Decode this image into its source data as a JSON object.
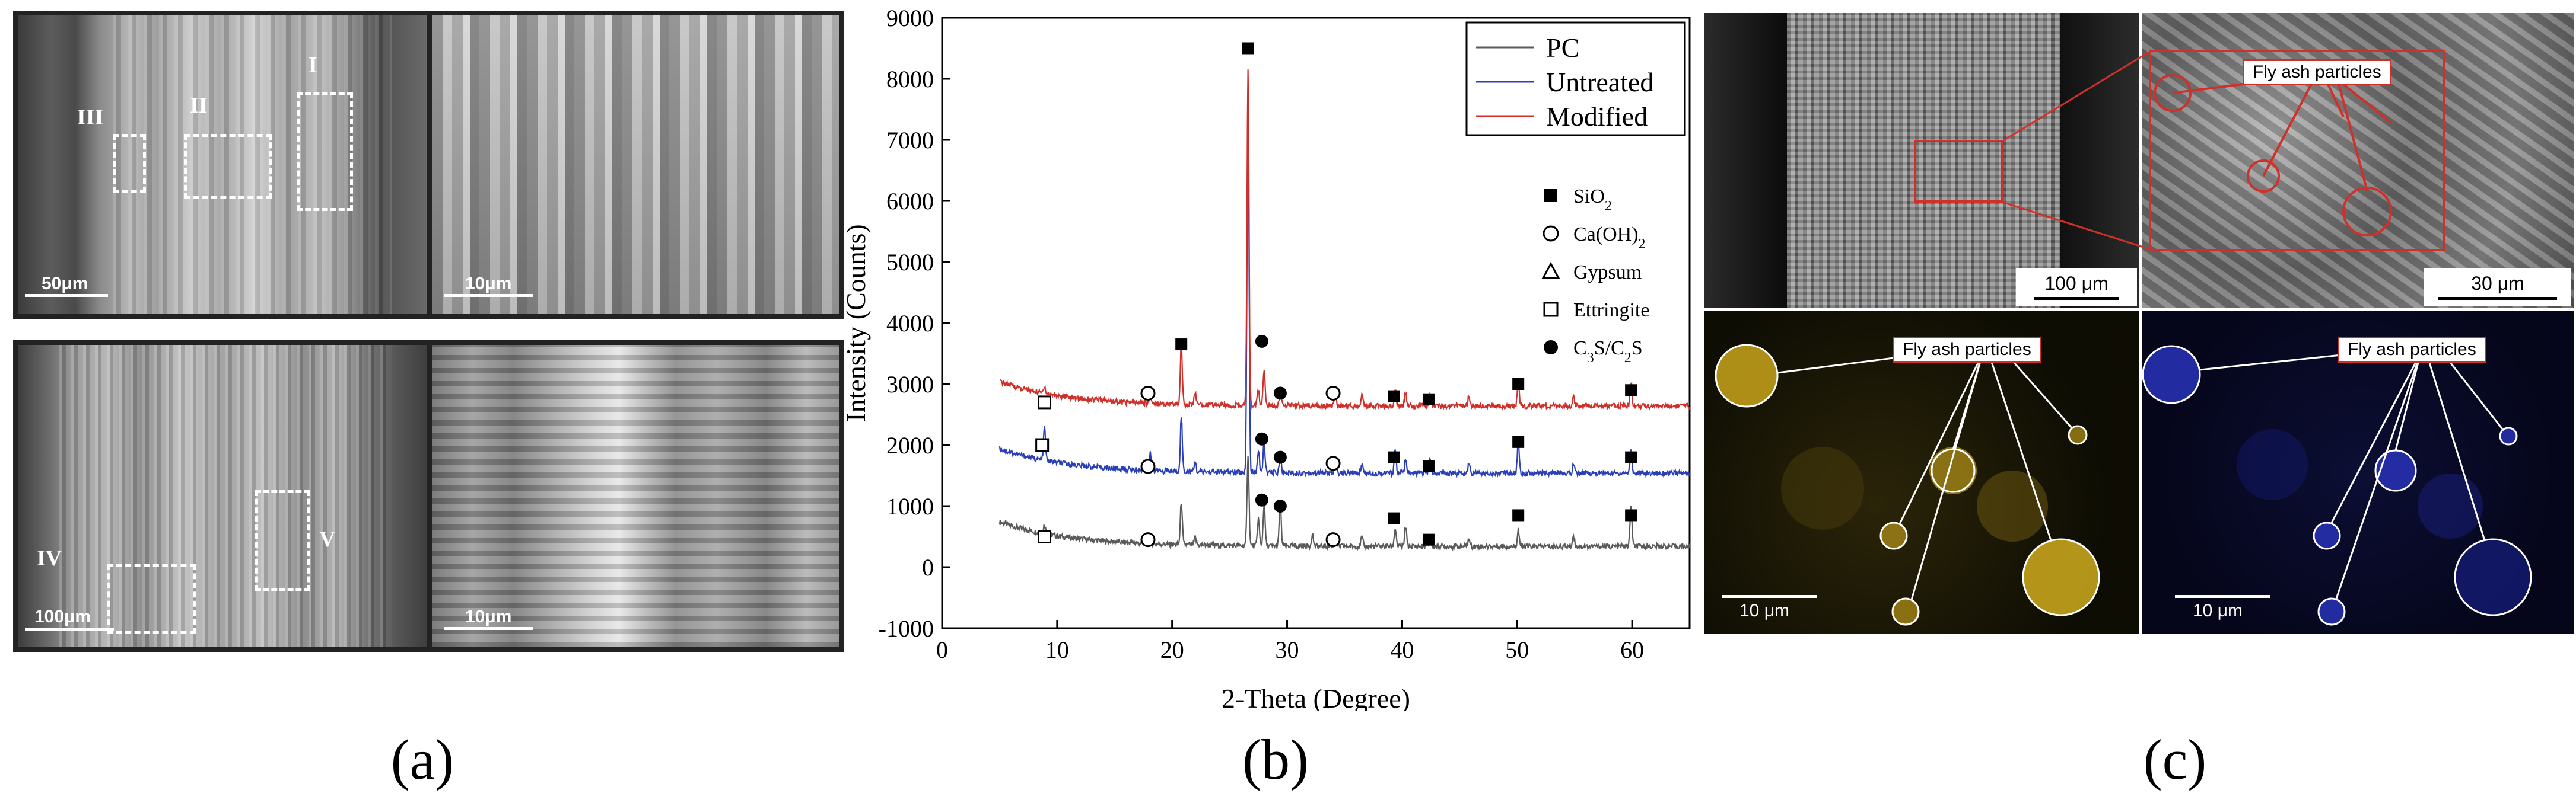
{
  "panels": {
    "a": "(a)",
    "b": "(b)",
    "c": "(c)"
  },
  "panel_a": {
    "top_left_scale": "50μm",
    "top_right_scale": "10μm",
    "bottom_left_scale": "100μm",
    "bottom_right_scale": "10μm",
    "region_labels": [
      "I",
      "II",
      "III",
      "IV",
      "V"
    ]
  },
  "panel_c": {
    "scale_top_left": "100 μm",
    "scale_top_right": "30 μm",
    "scale_bottom_left": "10 μm",
    "scale_bottom_right": "10 μm",
    "callout_top": "Fly ash particles",
    "callout_bottom_left": "Fly ash particles",
    "callout_bottom_right": "Fly ash particles"
  },
  "colors": {
    "pc": "#5a5a5a",
    "untreated": "#2b3fb8",
    "modified": "#d0302a",
    "callout_border": "#d0302a"
  },
  "chart_data": {
    "type": "line",
    "title": "",
    "xlabel": "2-Theta (Degree)",
    "ylabel": "Intensity (Counts)",
    "xlim": [
      0,
      65
    ],
    "ylim": [
      -1000,
      9000
    ],
    "xticks": [
      0,
      10,
      20,
      30,
      40,
      50,
      60
    ],
    "yticks": [
      -1000,
      0,
      1000,
      2000,
      3000,
      4000,
      5000,
      6000,
      7000,
      8000,
      9000
    ],
    "legend": [
      "PC",
      "Untreated",
      "Modified"
    ],
    "marker_legend": [
      {
        "symbol": "filled-square",
        "label": "SiO",
        "sub": "2"
      },
      {
        "symbol": "open-circle",
        "label": "Ca(OH)",
        "sub": "2"
      },
      {
        "symbol": "triangle",
        "label": "Gypsum",
        "sub": ""
      },
      {
        "symbol": "open-square",
        "label": "Ettringite",
        "sub": ""
      },
      {
        "symbol": "filled-circle",
        "label": "C3S/C2S",
        "sub": ""
      }
    ],
    "series": [
      {
        "name": "PC",
        "baseline": 400,
        "peaks": [
          [
            8.9,
            150
          ],
          [
            18.1,
            90
          ],
          [
            20.8,
            700
          ],
          [
            22.0,
            120
          ],
          [
            26.6,
            1500
          ],
          [
            27.5,
            450
          ],
          [
            28.0,
            700
          ],
          [
            29.4,
            700
          ],
          [
            32.2,
            200
          ],
          [
            34.2,
            120
          ],
          [
            36.5,
            150
          ],
          [
            39.4,
            300
          ],
          [
            40.3,
            320
          ],
          [
            42.4,
            200
          ],
          [
            45.8,
            120
          ],
          [
            50.1,
            280
          ],
          [
            54.9,
            180
          ],
          [
            59.9,
            650
          ]
        ]
      },
      {
        "name": "Untreated",
        "baseline": 1600,
        "peaks": [
          [
            8.9,
            550
          ],
          [
            18.1,
            300
          ],
          [
            20.8,
            900
          ],
          [
            22.0,
            160
          ],
          [
            26.6,
            6300
          ],
          [
            27.5,
            350
          ],
          [
            28.0,
            500
          ],
          [
            29.4,
            300
          ],
          [
            34.2,
            150
          ],
          [
            36.5,
            160
          ],
          [
            39.4,
            380
          ],
          [
            40.3,
            200
          ],
          [
            42.4,
            230
          ],
          [
            45.8,
            150
          ],
          [
            50.1,
            500
          ],
          [
            54.9,
            150
          ],
          [
            59.9,
            380
          ]
        ]
      },
      {
        "name": "Modified",
        "baseline": 2700,
        "peaks": [
          [
            8.9,
            120
          ],
          [
            18.1,
            120
          ],
          [
            20.8,
            1000
          ],
          [
            22.0,
            200
          ],
          [
            26.6,
            5500
          ],
          [
            27.5,
            250
          ],
          [
            28.0,
            600
          ],
          [
            29.4,
            220
          ],
          [
            34.2,
            160
          ],
          [
            36.5,
            200
          ],
          [
            39.4,
            300
          ],
          [
            40.3,
            200
          ],
          [
            42.4,
            200
          ],
          [
            45.8,
            150
          ],
          [
            50.1,
            400
          ],
          [
            54.9,
            150
          ],
          [
            59.9,
            400
          ]
        ]
      }
    ],
    "peak_markers": [
      {
        "x": 26.6,
        "y": 8500,
        "symbol": "filled-square"
      },
      {
        "x": 20.8,
        "y": 3650,
        "symbol": "filled-square"
      },
      {
        "x": 27.8,
        "y": 3700,
        "symbol": "filled-circle"
      },
      {
        "x": 29.4,
        "y": 2850,
        "symbol": "filled-circle"
      },
      {
        "x": 8.9,
        "y": 2700,
        "symbol": "open-square"
      },
      {
        "x": 17.9,
        "y": 2850,
        "symbol": "open-circle"
      },
      {
        "x": 34.0,
        "y": 2850,
        "symbol": "open-circle"
      },
      {
        "x": 39.3,
        "y": 2800,
        "symbol": "filled-square"
      },
      {
        "x": 42.3,
        "y": 2750,
        "symbol": "filled-square"
      },
      {
        "x": 50.1,
        "y": 3000,
        "symbol": "filled-square"
      },
      {
        "x": 59.9,
        "y": 2900,
        "symbol": "filled-square"
      },
      {
        "x": 8.7,
        "y": 2000,
        "symbol": "open-square"
      },
      {
        "x": 17.9,
        "y": 1650,
        "symbol": "open-circle"
      },
      {
        "x": 27.8,
        "y": 2100,
        "symbol": "filled-circle"
      },
      {
        "x": 29.4,
        "y": 1800,
        "symbol": "filled-circle"
      },
      {
        "x": 34.0,
        "y": 1700,
        "symbol": "open-circle"
      },
      {
        "x": 39.3,
        "y": 1800,
        "symbol": "filled-square"
      },
      {
        "x": 42.3,
        "y": 1650,
        "symbol": "filled-square"
      },
      {
        "x": 50.1,
        "y": 2050,
        "symbol": "filled-square"
      },
      {
        "x": 59.9,
        "y": 1800,
        "symbol": "filled-square"
      },
      {
        "x": 8.9,
        "y": 500,
        "symbol": "open-square"
      },
      {
        "x": 17.9,
        "y": 450,
        "symbol": "open-circle"
      },
      {
        "x": 27.8,
        "y": 1100,
        "symbol": "filled-circle"
      },
      {
        "x": 29.4,
        "y": 1000,
        "symbol": "filled-circle"
      },
      {
        "x": 34.0,
        "y": 450,
        "symbol": "open-circle"
      },
      {
        "x": 39.3,
        "y": 800,
        "symbol": "filled-square"
      },
      {
        "x": 42.3,
        "y": 450,
        "symbol": "filled-square"
      },
      {
        "x": 50.1,
        "y": 850,
        "symbol": "filled-square"
      },
      {
        "x": 59.9,
        "y": 850,
        "symbol": "filled-square"
      }
    ]
  }
}
